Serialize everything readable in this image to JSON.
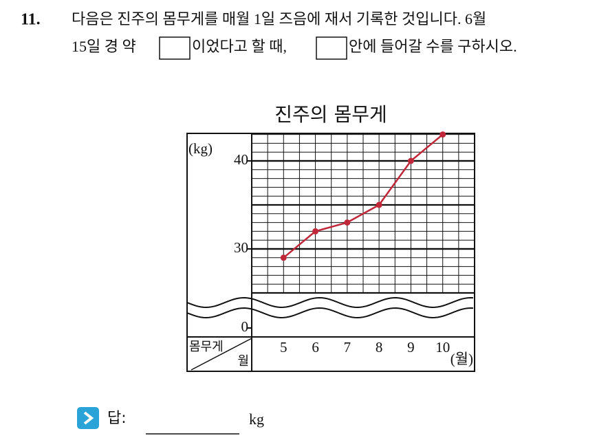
{
  "question": {
    "number": "11.",
    "line1": "다음은 진주의 몸무게를 매월 1일 즈음에 재서 기록한 것입니다. 6월",
    "line2a": "15일 경 약",
    "line2b": "이었다고 할 때,",
    "line2c": "안에 들어갈 수를 구하시오."
  },
  "chart_data": {
    "type": "line",
    "title": "진주의 몸무게",
    "y_unit": "(kg)",
    "x_unit": "(월)",
    "corner_top": "몸무게",
    "corner_bottom": "월",
    "categories": [
      "5",
      "6",
      "7",
      "8",
      "9",
      "10"
    ],
    "values": [
      29,
      32,
      33,
      35,
      40,
      43
    ],
    "color": "#c0283a",
    "ylim": [
      25,
      43
    ],
    "yticks": [
      0,
      30,
      40
    ],
    "grid": true
  },
  "answer": {
    "label": "답:",
    "unit": "kg"
  }
}
